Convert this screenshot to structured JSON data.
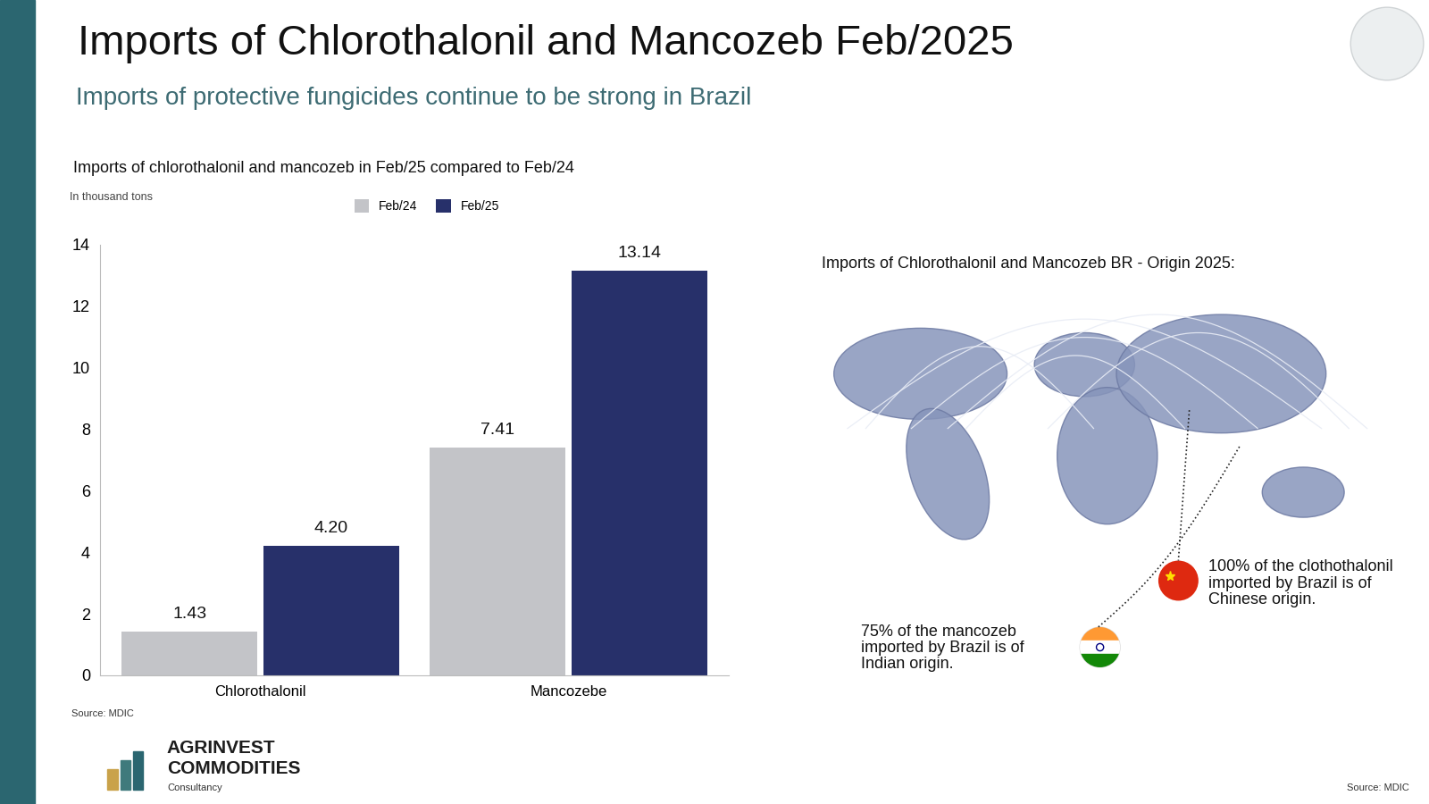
{
  "header": {
    "title": "Imports of Chlorothalonil and Mancozeb Feb/2025",
    "subtitle": "Imports of protective fungicides continue to be strong in Brazil"
  },
  "chart_data": {
    "type": "bar",
    "title": "Imports of chlorothalonil and mancozeb in Feb/25 compared to Feb/24",
    "y_label": "In thousand tons",
    "categories": [
      "Chlorothalonil",
      "Mancozebe"
    ],
    "series": [
      {
        "name": "Feb/24",
        "color": "#c3c4c8",
        "values": [
          1.43,
          7.41
        ],
        "value_labels": [
          "1.43",
          "7.41"
        ]
      },
      {
        "name": "Feb/25",
        "color": "#27306a",
        "values": [
          4.2,
          13.14
        ],
        "value_labels": [
          "4.20",
          "13.14"
        ]
      }
    ],
    "ylim": [
      0,
      14
    ],
    "yticks": [
      0,
      2,
      4,
      6,
      8,
      10,
      12,
      14
    ],
    "grid": false,
    "legend": "upper center",
    "data_labels": true,
    "source": "Source: MDIC"
  },
  "map_panel": {
    "title": "Imports of Chlorothalonil and Mancozeb BR - Origin 2025:",
    "china_note": [
      "100% of the clothothalonil",
      "imported by Brazil is of",
      "Chinese origin."
    ],
    "india_note": [
      "75% of the mancozeb",
      "imported by Brazil is of",
      "Indian origin."
    ],
    "source": "Source: MDIC"
  },
  "footer": {
    "logo_name": [
      "AGRINVEST",
      "COMMODITIES"
    ],
    "logo_tagline": "Consultancy"
  }
}
